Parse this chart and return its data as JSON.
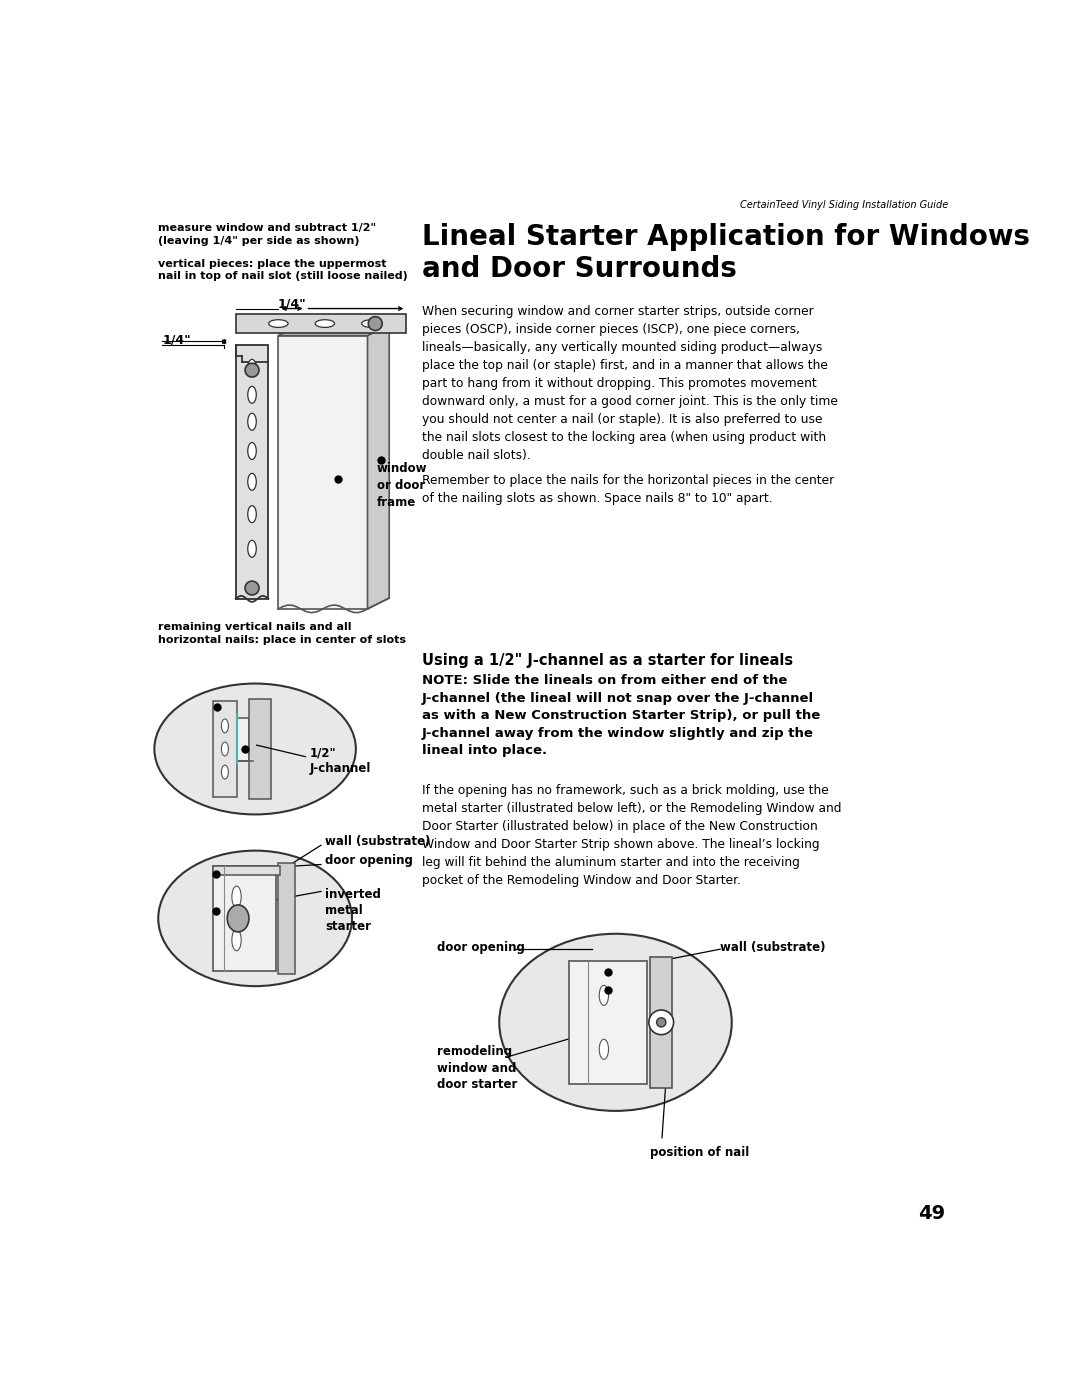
{
  "page_header": "CertainTeed Vinyl Siding Installation Guide",
  "page_number": "49",
  "title_line1": "Lineal Starter Application for Windows",
  "title_line2": "and Door Surrounds",
  "top_left_caption1": "measure window and subtract 1/2\"\n(leaving 1/4\" per side as shown)",
  "top_left_caption2": "vertical pieces: place the uppermost\nnail in top of nail slot (still loose nailed)",
  "bottom_left_caption": "remaining vertical nails and all\nhorizontal nails: place in center of slots",
  "dim_14_horiz": "1/4\"",
  "dim_14_vert": "1/4\"",
  "label_window_frame": "window\nor door\nframe",
  "section2_title": "Using a 1/2\" J-channel as a starter for lineals",
  "section2_note_line1": "NOTE: Slide the lineals on from either end of the",
  "section2_note_line2": "J-channel (the lineal will not snap over the J-channel",
  "section2_note_line3": "as with a New Construction Starter Strip), or pull the",
  "section2_note_line4": "J-channel away from the window slightly and zip the",
  "section2_note_line5": "lineal into place.",
  "section2_body": "If the opening has no framework, such as a brick molding, use the\nmetal starter (illustrated below left), or the Remodeling Window and\nDoor Starter (illustrated below) in place of the New Construction\nWindow and Door Starter Strip shown above. The lineal’s locking\nleg will fit behind the aluminum starter and into the receiving\npocket of the Remodeling Window and Door Starter.",
  "para1": "When securing window and corner starter strips, outside corner\npieces (OSCP), inside corner pieces (ISCP), one piece corners,\nlineals—basically, any vertically mounted siding product—always\nplace the top nail (or staple) first, and in a manner that allows the\npart to hang from it without dropping. This promotes movement\ndownward only, a must for a good corner joint. This is the only time\nyou should not center a nail (or staple). It is also preferred to use\nthe nail slots closest to the locking area (when using product with\ndouble nail slots).",
  "para2": "Remember to place the nails for the horizontal pieces in the center\nof the nailing slots as shown. Space nails 8\" to 10\" apart.",
  "label_j_channel": "1/2\"\nJ-channel",
  "label_wall_sub": "wall (substrate)",
  "label_door_opening": "door opening",
  "label_inverted": "inverted\nmetal\nstarter",
  "label_door_opening2": "door opening",
  "label_wall_sub2": "wall (substrate)",
  "label_remodeling": "remodeling\nwindow and\ndoor starter",
  "label_nail_pos": "position of nail",
  "bg_color": "#ffffff",
  "text_color": "#000000"
}
